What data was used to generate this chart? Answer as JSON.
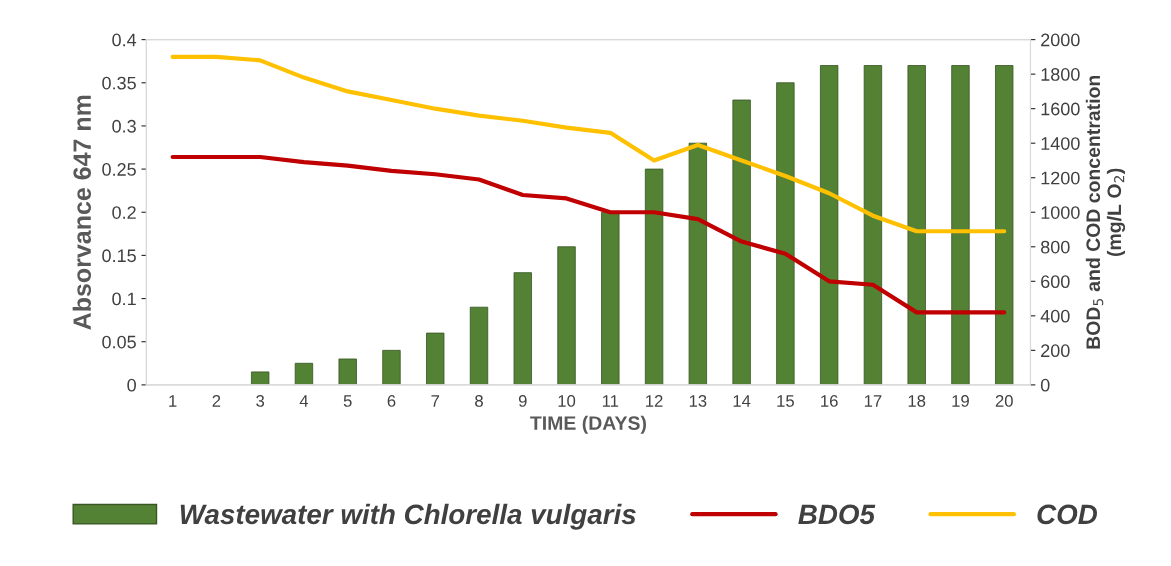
{
  "chart_data": {
    "type": "bar",
    "xlabel": "TIME (DAYS)",
    "ylabel": "Absorvance 647 nm",
    "y2label": "BOD$_{5}$ and COD concentration\n(mg/L O$_{2}$)",
    "categories": [
      "1",
      "2",
      "3",
      "4",
      "5",
      "6",
      "7",
      "8",
      "9",
      "10",
      "11",
      "12",
      "13",
      "14",
      "15",
      "16",
      "17",
      "18",
      "19",
      "20"
    ],
    "series": [
      {
        "name": "Wastewater with Chlorella vulgaris",
        "color": "#548235",
        "values": [
          0,
          0,
          0.015,
          0.025,
          0.03,
          0.04,
          0.06,
          0.09,
          0.13,
          0.16,
          0.2,
          0.25,
          0.28,
          0.33,
          0.35,
          0.37,
          0.37,
          0.37,
          0.37,
          0.37
        ]
      },
      {
        "name": "BDO5",
        "type": "line",
        "axis": "y2",
        "color": "#c00000",
        "values": [
          1320,
          1320,
          1320,
          1290,
          1270,
          1240,
          1220,
          1190,
          1100,
          1080,
          1000,
          1000,
          960,
          830,
          760,
          600,
          580,
          420,
          420,
          420
        ]
      },
      {
        "name": "COD",
        "type": "line",
        "axis": "y2",
        "color": "#ffc000",
        "values": [
          1900,
          1900,
          1880,
          1780,
          1700,
          1650,
          1600,
          1560,
          1530,
          1490,
          1460,
          1300,
          1390,
          1300,
          1210,
          1110,
          980,
          890,
          890,
          890
        ]
      }
    ],
    "ylim": [
      0,
      0.4
    ],
    "yticks": [
      0,
      0.05,
      0.1,
      0.15,
      0.2,
      0.25,
      0.3,
      0.35,
      0.4
    ],
    "y2lim": [
      0,
      2000
    ],
    "y2ticks": [
      0,
      200,
      400,
      600,
      800,
      1000,
      1200,
      1400,
      1600,
      1800,
      2000
    ],
    "grid": false,
    "legend": "bottom",
    "line_style": "solid"
  }
}
